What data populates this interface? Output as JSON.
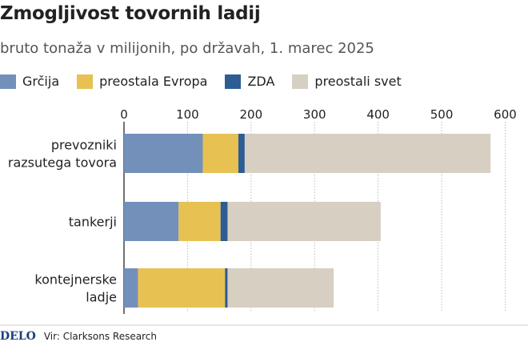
{
  "chart_data": {
    "type": "bar",
    "orientation": "horizontal",
    "stacked": true,
    "title": "Zmogljivost tovornih ladij",
    "subtitle": "bruto tonaža v milijonih, po državah, 1. marec 2025",
    "categories": [
      [
        "prevozniki",
        "razsutega tovora"
      ],
      [
        "tankerji"
      ],
      [
        "kontejnerske",
        "ladje"
      ]
    ],
    "series": [
      {
        "name": "Grčija",
        "color": "#7390bb",
        "values": [
          124,
          86,
          22
        ]
      },
      {
        "name": "preostala Evropa",
        "color": "#e8c153",
        "values": [
          56,
          66,
          137
        ]
      },
      {
        "name": "ZDA",
        "color": "#2d5d92",
        "values": [
          10,
          11,
          4
        ]
      },
      {
        "name": "preostali svet",
        "color": "#d7cfc2",
        "values": [
          387,
          241,
          167
        ]
      }
    ],
    "xlim": [
      0,
      600
    ],
    "xticks": [
      0,
      100,
      200,
      300,
      400,
      500,
      600
    ],
    "grid": true,
    "legend": "top"
  },
  "footer": {
    "logo": "DELO",
    "source": "Vir: Clarksons Research"
  }
}
